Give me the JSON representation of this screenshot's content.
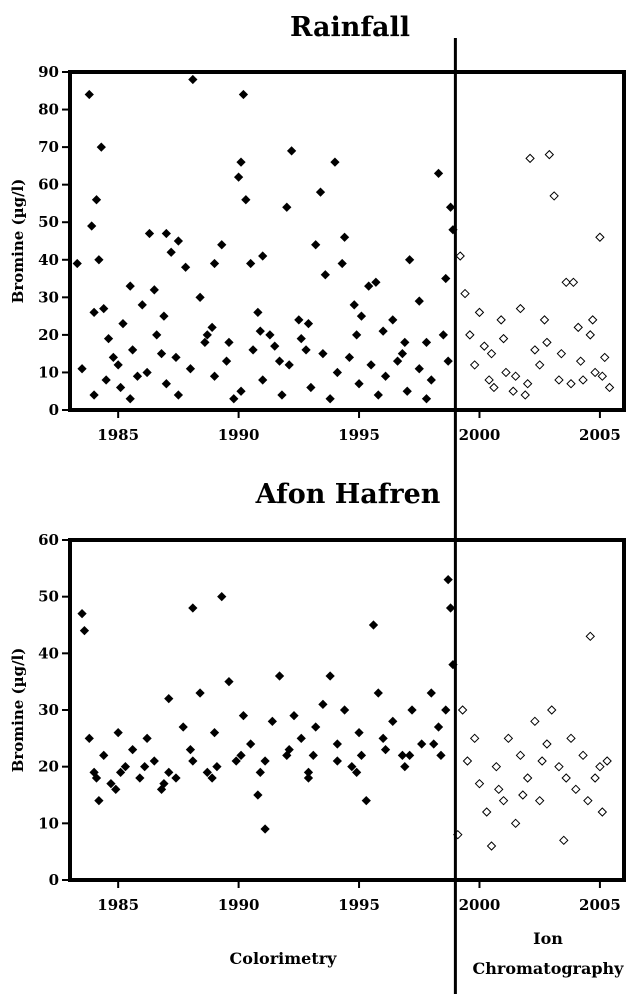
{
  "chart_data": [
    {
      "type": "scatter",
      "title": "Rainfall",
      "ylabel": "Bromine (µg/l)",
      "xlim": [
        1983,
        2006
      ],
      "ylim": [
        0,
        90
      ],
      "x_ticks": [
        1985,
        1990,
        1995,
        2000,
        2005
      ],
      "y_ticks": [
        0,
        10,
        20,
        30,
        40,
        50,
        60,
        70,
        80,
        90
      ],
      "method_switch_x": 1999,
      "series": [
        {
          "marker": "filled-diamond",
          "color": "#000000",
          "points": [
            [
              1983.3,
              39
            ],
            [
              1983.5,
              11
            ],
            [
              1983.8,
              84
            ],
            [
              1983.9,
              49
            ],
            [
              1984.0,
              26
            ],
            [
              1984.1,
              56
            ],
            [
              1984.2,
              40
            ],
            [
              1984.3,
              70
            ],
            [
              1984.4,
              27
            ],
            [
              1984.6,
              19
            ],
            [
              1984.8,
              14
            ],
            [
              1985.0,
              12
            ],
            [
              1985.2,
              23
            ],
            [
              1985.5,
              33
            ],
            [
              1985.8,
              9
            ],
            [
              1986.0,
              28
            ],
            [
              1986.3,
              47
            ],
            [
              1986.5,
              32
            ],
            [
              1986.8,
              15
            ],
            [
              1987.0,
              47
            ],
            [
              1987.2,
              42
            ],
            [
              1987.5,
              45
            ],
            [
              1987.8,
              38
            ],
            [
              1988.1,
              88
            ],
            [
              1988.4,
              30
            ],
            [
              1988.7,
              20
            ],
            [
              1989.0,
              39
            ],
            [
              1989.3,
              44
            ],
            [
              1989.6,
              18
            ],
            [
              1990.0,
              62
            ],
            [
              1990.1,
              66
            ],
            [
              1990.2,
              84
            ],
            [
              1990.3,
              56
            ],
            [
              1990.5,
              39
            ],
            [
              1990.8,
              26
            ],
            [
              1991.0,
              41
            ],
            [
              1991.3,
              20
            ],
            [
              1991.7,
              13
            ],
            [
              1992.0,
              54
            ],
            [
              1992.2,
              69
            ],
            [
              1992.5,
              24
            ],
            [
              1992.8,
              16
            ],
            [
              1993.2,
              44
            ],
            [
              1993.4,
              58
            ],
            [
              1993.6,
              36
            ],
            [
              1994.0,
              66
            ],
            [
              1994.3,
              39
            ],
            [
              1994.4,
              46
            ],
            [
              1994.8,
              28
            ],
            [
              1995.1,
              25
            ],
            [
              1995.4,
              33
            ],
            [
              1995.7,
              34
            ],
            [
              1996.0,
              21
            ],
            [
              1996.4,
              24
            ],
            [
              1996.8,
              15
            ],
            [
              1997.1,
              40
            ],
            [
              1997.5,
              29
            ],
            [
              1997.8,
              18
            ],
            [
              1998.3,
              63
            ],
            [
              1998.6,
              35
            ],
            [
              1998.8,
              54
            ],
            [
              1998.9,
              48
            ],
            [
              1984.5,
              8
            ],
            [
              1985.1,
              6
            ],
            [
              1986.2,
              10
            ],
            [
              1987.0,
              7
            ],
            [
              1988.0,
              11
            ],
            [
              1989.0,
              9
            ],
            [
              1990.1,
              5
            ],
            [
              1991.0,
              8
            ],
            [
              1992.1,
              12
            ],
            [
              1993.0,
              6
            ],
            [
              1994.1,
              10
            ],
            [
              1995.0,
              7
            ],
            [
              1996.1,
              9
            ],
            [
              1997.0,
              5
            ],
            [
              1998.0,
              8
            ],
            [
              1998.7,
              13
            ],
            [
              1985.6,
              16
            ],
            [
              1987.4,
              14
            ],
            [
              1989.5,
              13
            ],
            [
              1991.5,
              17
            ],
            [
              1993.5,
              15
            ],
            [
              1995.5,
              12
            ],
            [
              1997.5,
              11
            ],
            [
              1986.6,
              20
            ],
            [
              1988.6,
              18
            ],
            [
              1990.6,
              16
            ],
            [
              1992.6,
              19
            ],
            [
              1994.6,
              14
            ],
            [
              1996.6,
              13
            ],
            [
              1984.0,
              4
            ],
            [
              1985.5,
              3
            ],
            [
              1987.5,
              4
            ],
            [
              1989.8,
              3
            ],
            [
              1991.8,
              4
            ],
            [
              1993.8,
              3
            ],
            [
              1995.8,
              4
            ],
            [
              1997.8,
              3
            ],
            [
              1986.9,
              25
            ],
            [
              1988.9,
              22
            ],
            [
              1990.9,
              21
            ],
            [
              1992.9,
              23
            ],
            [
              1994.9,
              20
            ],
            [
              1996.9,
              18
            ],
            [
              1998.5,
              20
            ]
          ]
        },
        {
          "marker": "open-diamond",
          "color": "#000000",
          "points": [
            [
              1999.2,
              41
            ],
            [
              1999.4,
              31
            ],
            [
              1999.6,
              20
            ],
            [
              1999.8,
              12
            ],
            [
              2000.0,
              26
            ],
            [
              2000.2,
              17
            ],
            [
              2000.4,
              8
            ],
            [
              2000.6,
              6
            ],
            [
              2000.9,
              24
            ],
            [
              2001.1,
              10
            ],
            [
              2001.4,
              5
            ],
            [
              2001.7,
              27
            ],
            [
              2001.9,
              4
            ],
            [
              2002.1,
              67
            ],
            [
              2002.3,
              16
            ],
            [
              2002.5,
              12
            ],
            [
              2002.7,
              24
            ],
            [
              2002.9,
              68
            ],
            [
              2003.1,
              57
            ],
            [
              2003.3,
              8
            ],
            [
              2003.6,
              34
            ],
            [
              2003.9,
              34
            ],
            [
              2004.1,
              22
            ],
            [
              2004.3,
              8
            ],
            [
              2004.6,
              20
            ],
            [
              2004.8,
              10
            ],
            [
              2005.0,
              46
            ],
            [
              2005.2,
              14
            ],
            [
              2005.4,
              6
            ],
            [
              2000.5,
              15
            ],
            [
              2001.0,
              19
            ],
            [
              2001.5,
              9
            ],
            [
              2002.0,
              7
            ],
            [
              2002.8,
              18
            ],
            [
              2003.4,
              15
            ],
            [
              2003.8,
              7
            ],
            [
              2004.2,
              13
            ],
            [
              2004.7,
              24
            ],
            [
              2005.1,
              9
            ]
          ]
        }
      ]
    },
    {
      "type": "scatter",
      "title": "Afon Hafren",
      "ylabel": "Bromine (µg/l)",
      "xlim": [
        1983,
        2006
      ],
      "ylim": [
        0,
        60
      ],
      "x_ticks": [
        1985,
        1990,
        1995,
        2000,
        2005
      ],
      "y_ticks": [
        0,
        10,
        20,
        30,
        40,
        50,
        60
      ],
      "method_switch_x": 1999,
      "series": [
        {
          "marker": "filled-diamond",
          "color": "#000000",
          "points": [
            [
              1983.5,
              47
            ],
            [
              1983.6,
              44
            ],
            [
              1983.8,
              25
            ],
            [
              1984.0,
              19
            ],
            [
              1984.2,
              14
            ],
            [
              1984.4,
              22
            ],
            [
              1984.7,
              17
            ],
            [
              1985.0,
              26
            ],
            [
              1985.3,
              20
            ],
            [
              1985.6,
              23
            ],
            [
              1985.9,
              18
            ],
            [
              1986.2,
              25
            ],
            [
              1986.5,
              21
            ],
            [
              1986.8,
              16
            ],
            [
              1987.1,
              32
            ],
            [
              1987.4,
              18
            ],
            [
              1987.7,
              27
            ],
            [
              1988.0,
              23
            ],
            [
              1988.1,
              48
            ],
            [
              1988.4,
              33
            ],
            [
              1988.7,
              19
            ],
            [
              1989.0,
              26
            ],
            [
              1989.3,
              50
            ],
            [
              1989.6,
              35
            ],
            [
              1989.9,
              21
            ],
            [
              1990.2,
              29
            ],
            [
              1990.5,
              24
            ],
            [
              1990.8,
              15
            ],
            [
              1991.1,
              9
            ],
            [
              1991.4,
              28
            ],
            [
              1991.7,
              36
            ],
            [
              1992.0,
              22
            ],
            [
              1992.3,
              29
            ],
            [
              1992.6,
              25
            ],
            [
              1992.9,
              19
            ],
            [
              1993.2,
              27
            ],
            [
              1993.5,
              31
            ],
            [
              1993.8,
              36
            ],
            [
              1994.1,
              24
            ],
            [
              1994.4,
              30
            ],
            [
              1994.7,
              20
            ],
            [
              1995.0,
              26
            ],
            [
              1995.3,
              14
            ],
            [
              1995.6,
              45
            ],
            [
              1995.8,
              33
            ],
            [
              1996.0,
              25
            ],
            [
              1996.4,
              28
            ],
            [
              1996.8,
              22
            ],
            [
              1997.2,
              30
            ],
            [
              1997.6,
              24
            ],
            [
              1998.0,
              33
            ],
            [
              1998.3,
              27
            ],
            [
              1998.6,
              30
            ],
            [
              1998.7,
              53
            ],
            [
              1998.8,
              48
            ],
            [
              1998.9,
              38
            ],
            [
              1984.1,
              18
            ],
            [
              1985.1,
              19
            ],
            [
              1986.1,
              20
            ],
            [
              1987.1,
              19
            ],
            [
              1988.1,
              21
            ],
            [
              1989.1,
              20
            ],
            [
              1990.1,
              22
            ],
            [
              1991.1,
              21
            ],
            [
              1992.1,
              23
            ],
            [
              1993.1,
              22
            ],
            [
              1994.1,
              21
            ],
            [
              1995.1,
              22
            ],
            [
              1996.1,
              23
            ],
            [
              1997.1,
              22
            ],
            [
              1998.1,
              24
            ],
            [
              1984.9,
              16
            ],
            [
              1986.9,
              17
            ],
            [
              1988.9,
              18
            ],
            [
              1990.9,
              19
            ],
            [
              1992.9,
              18
            ],
            [
              1994.9,
              19
            ],
            [
              1996.9,
              20
            ],
            [
              1998.4,
              22
            ]
          ]
        },
        {
          "marker": "open-diamond",
          "color": "#000000",
          "points": [
            [
              1999.1,
              8
            ],
            [
              1999.3,
              30
            ],
            [
              1999.5,
              21
            ],
            [
              1999.8,
              25
            ],
            [
              2000.0,
              17
            ],
            [
              2000.3,
              12
            ],
            [
              2000.5,
              6
            ],
            [
              2000.7,
              20
            ],
            [
              2001.0,
              14
            ],
            [
              2001.2,
              25
            ],
            [
              2001.5,
              10
            ],
            [
              2001.7,
              22
            ],
            [
              2002.0,
              18
            ],
            [
              2002.3,
              28
            ],
            [
              2002.5,
              14
            ],
            [
              2002.8,
              24
            ],
            [
              2003.0,
              30
            ],
            [
              2003.3,
              20
            ],
            [
              2003.5,
              7
            ],
            [
              2003.8,
              25
            ],
            [
              2004.0,
              16
            ],
            [
              2004.3,
              22
            ],
            [
              2004.6,
              43
            ],
            [
              2004.8,
              18
            ],
            [
              2005.1,
              12
            ],
            [
              2005.3,
              21
            ],
            [
              2000.8,
              16
            ],
            [
              2001.8,
              15
            ],
            [
              2002.6,
              21
            ],
            [
              2003.6,
              18
            ],
            [
              2004.5,
              14
            ],
            [
              2005.0,
              20
            ]
          ]
        }
      ]
    }
  ],
  "method_labels": {
    "left": "Colorimetry",
    "right_line1": "Ion",
    "right_line2": "Chromatography"
  }
}
